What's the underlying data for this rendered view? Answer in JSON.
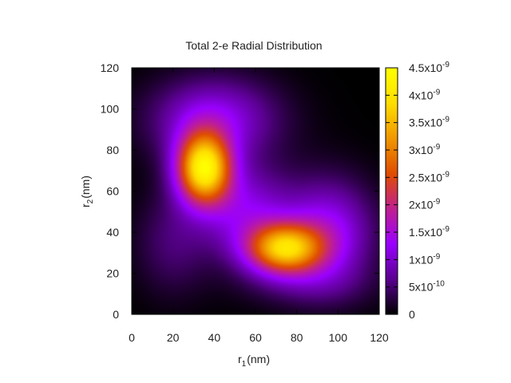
{
  "chart_data": {
    "type": "heatmap",
    "title": "Total 2-e Radial Distribution",
    "xlabel": {
      "base": "r",
      "sub": "1",
      "unit": "(nm)"
    },
    "ylabel": {
      "base": "r",
      "sub": "2",
      "unit": "(nm)"
    },
    "xlim": [
      0,
      120
    ],
    "ylim": [
      0,
      120
    ],
    "xticks": [
      "0",
      "20",
      "40",
      "60",
      "80",
      "100",
      "120"
    ],
    "yticks": [
      "0",
      "20",
      "40",
      "60",
      "80",
      "100",
      "120"
    ],
    "colorbar": {
      "min": 0,
      "max": 4.5e-09,
      "colormap": [
        "#000000",
        "#5a0090",
        "#9a00ff",
        "#c0208f",
        "#e04d00",
        "#f09800",
        "#ffde00",
        "#ffff00"
      ],
      "ticks": [
        {
          "value": 0,
          "mant": "0",
          "exp": ""
        },
        {
          "value": 5e-10,
          "mant": "5x10",
          "exp": "-10"
        },
        {
          "value": 1e-09,
          "mant": "1x10",
          "exp": "-9"
        },
        {
          "value": 1.5e-09,
          "mant": "1.5x10",
          "exp": "-9"
        },
        {
          "value": 2e-09,
          "mant": "2x10",
          "exp": "-9"
        },
        {
          "value": 2.5e-09,
          "mant": "2.5x10",
          "exp": "-9"
        },
        {
          "value": 3e-09,
          "mant": "3x10",
          "exp": "-9"
        },
        {
          "value": 3.5e-09,
          "mant": "3.5x10",
          "exp": "-9"
        },
        {
          "value": 4e-09,
          "mant": "4x10",
          "exp": "-9"
        },
        {
          "value": 4.5e-09,
          "mant": "4.5x10",
          "exp": "-9"
        }
      ]
    },
    "peaks": [
      {
        "r1": 35,
        "r2": 71,
        "value": 4e-09
      },
      {
        "r1": 74,
        "r2": 32,
        "value": 3.3e-09
      }
    ]
  }
}
